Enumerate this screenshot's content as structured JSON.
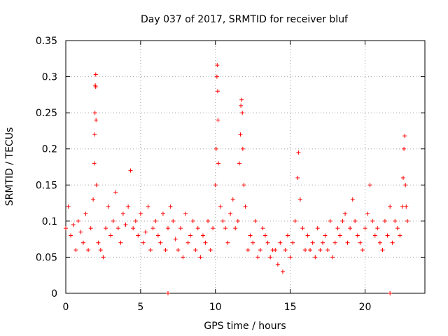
{
  "chart_data": {
    "type": "scatter",
    "title": "Day 037 of 2017, SRMTID for receiver bluf",
    "xlabel": "GPS time / hours",
    "ylabel": "SRMTID / TECUs",
    "xlim": [
      0,
      24
    ],
    "ylim": [
      0,
      0.35
    ],
    "xticks": [
      0,
      5,
      10,
      15,
      20
    ],
    "xtick_labels": [
      "0",
      "5",
      "10",
      "15",
      "20"
    ],
    "yticks": [
      0,
      0.05,
      0.1,
      0.15,
      0.2,
      0.25,
      0.3,
      0.35
    ],
    "ytick_labels": [
      "0",
      "0.05",
      "0.1",
      "0.15",
      "0.2",
      "0.25",
      "0.3",
      "0.35"
    ],
    "grid": true,
    "marker": "+",
    "color": "#ff0000",
    "series": [
      {
        "x": [
          0.0,
          0.17,
          0.33,
          0.5,
          0.67,
          0.83,
          1.0,
          1.17,
          1.33,
          1.5,
          1.67,
          1.83,
          1.9,
          1.93,
          1.95,
          1.97,
          2.0,
          2.0,
          2.02,
          2.05,
          2.17,
          2.33,
          2.5,
          2.67,
          2.83,
          3.0,
          3.17,
          3.33,
          3.5,
          3.67,
          3.83,
          4.0,
          4.17,
          4.33,
          4.5,
          4.67,
          4.83,
          5.0,
          5.17,
          5.33,
          5.5,
          5.67,
          5.83,
          6.0,
          6.17,
          6.33,
          6.5,
          6.67,
          6.83,
          7.0,
          7.17,
          7.33,
          7.5,
          7.67,
          7.83,
          8.0,
          8.17,
          8.33,
          8.5,
          8.67,
          8.83,
          9.0,
          9.17,
          9.33,
          9.5,
          9.67,
          9.83,
          10.0,
          10.05,
          10.1,
          10.12,
          10.15,
          10.17,
          10.2,
          10.33,
          10.5,
          10.67,
          10.83,
          11.0,
          11.17,
          11.33,
          11.5,
          11.6,
          11.67,
          11.7,
          11.75,
          11.8,
          11.83,
          11.9,
          12.0,
          12.17,
          12.33,
          12.5,
          12.67,
          12.83,
          13.0,
          13.17,
          13.33,
          13.5,
          13.67,
          13.83,
          14.0,
          14.17,
          14.33,
          14.5,
          14.67,
          14.83,
          15.0,
          15.17,
          15.33,
          15.5,
          15.55,
          15.67,
          15.83,
          16.0,
          16.17,
          16.33,
          16.5,
          16.67,
          16.83,
          17.0,
          17.17,
          17.33,
          17.5,
          17.67,
          17.83,
          18.0,
          18.17,
          18.33,
          18.5,
          18.67,
          18.83,
          19.0,
          19.17,
          19.33,
          19.5,
          19.67,
          19.83,
          20.0,
          20.17,
          20.33,
          20.5,
          20.67,
          20.83,
          21.0,
          21.17,
          21.33,
          21.5,
          21.67,
          21.83,
          22.0,
          22.17,
          22.33,
          22.5,
          22.55,
          22.6,
          22.65,
          22.7,
          22.75,
          22.83
        ],
        "y": [
          0.09,
          0.12,
          0.08,
          0.095,
          0.06,
          0.1,
          0.085,
          0.07,
          0.11,
          0.06,
          0.09,
          0.13,
          0.18,
          0.22,
          0.25,
          0.288,
          0.303,
          0.286,
          0.24,
          0.15,
          0.07,
          0.06,
          0.05,
          0.09,
          0.12,
          0.08,
          0.1,
          0.14,
          0.09,
          0.07,
          0.11,
          0.095,
          0.12,
          0.17,
          0.09,
          0.1,
          0.08,
          0.11,
          0.07,
          0.085,
          0.12,
          0.06,
          0.09,
          0.1,
          0.08,
          0.07,
          0.11,
          0.06,
          0.09,
          0.12,
          0.1,
          0.075,
          0.06,
          0.09,
          0.05,
          0.11,
          0.07,
          0.08,
          0.1,
          0.06,
          0.09,
          0.05,
          0.08,
          0.07,
          0.1,
          0.06,
          0.09,
          0.15,
          0.2,
          0.3,
          0.316,
          0.28,
          0.24,
          0.18,
          0.12,
          0.1,
          0.09,
          0.07,
          0.11,
          0.13,
          0.09,
          0.1,
          0.18,
          0.22,
          0.26,
          0.268,
          0.25,
          0.2,
          0.15,
          0.12,
          0.06,
          0.08,
          0.07,
          0.1,
          0.05,
          0.06,
          0.09,
          0.08,
          0.07,
          0.05,
          0.06,
          0.06,
          0.04,
          0.07,
          0.03,
          0.06,
          0.08,
          0.05,
          0.07,
          0.1,
          0.16,
          0.195,
          0.13,
          0.09,
          0.06,
          0.08,
          0.06,
          0.07,
          0.05,
          0.09,
          0.06,
          0.07,
          0.08,
          0.06,
          0.1,
          0.05,
          0.07,
          0.09,
          0.08,
          0.1,
          0.11,
          0.07,
          0.09,
          0.13,
          0.1,
          0.08,
          0.07,
          0.06,
          0.09,
          0.11,
          0.15,
          0.1,
          0.08,
          0.09,
          0.07,
          0.06,
          0.1,
          0.08,
          0.12,
          0.07,
          0.1,
          0.09,
          0.08,
          0.12,
          0.16,
          0.2,
          0.218,
          0.15,
          0.12,
          0.1
        ]
      }
    ],
    "points_at_zero": [
      6.83,
      21.67
    ]
  }
}
